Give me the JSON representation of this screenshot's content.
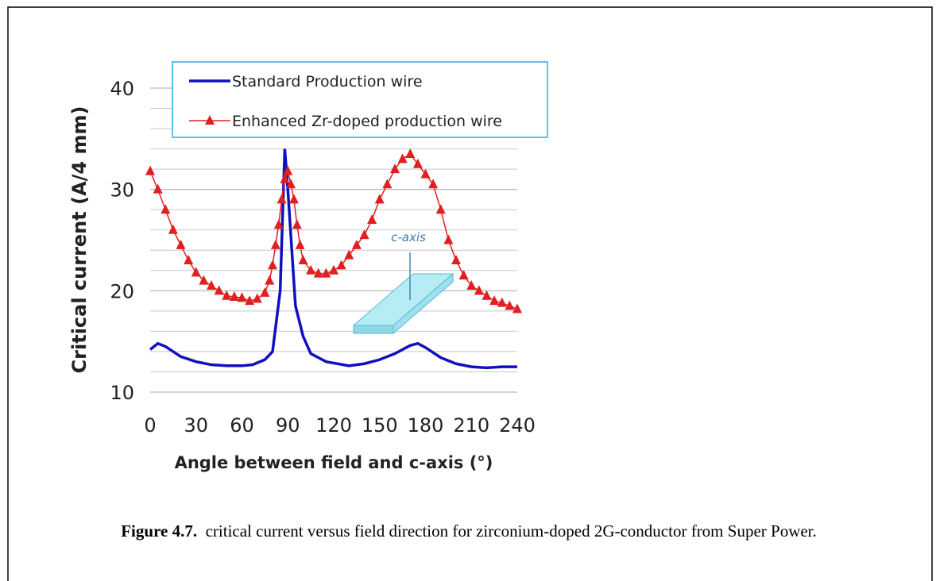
{
  "chart_data": {
    "type": "line",
    "x_label": "Angle between field and c-axis (°)",
    "y_label": "Critical current (A/4 mm)",
    "annotation": "c-axis",
    "xlim": [
      0,
      240
    ],
    "xticks": [
      0,
      30,
      60,
      90,
      120,
      150,
      180,
      210,
      240
    ],
    "ylim": [
      10,
      40
    ],
    "yticks": [
      10,
      20,
      30,
      40
    ],
    "minor_yticks": [
      12,
      14,
      16,
      18,
      22,
      24,
      26,
      28,
      32,
      34,
      36,
      38
    ],
    "grid": true,
    "series": [
      {
        "name": "Standard Production wire",
        "color": "#1010c0",
        "marker": "none",
        "x": [
          0,
          5,
          10,
          15,
          20,
          30,
          40,
          50,
          60,
          67,
          75,
          80,
          85,
          88,
          90,
          95,
          100,
          105,
          115,
          130,
          140,
          150,
          160,
          170,
          175,
          180,
          190,
          200,
          210,
          220,
          230,
          240
        ],
        "values": [
          14.2,
          14.8,
          14.5,
          14.0,
          13.5,
          13.0,
          12.7,
          12.6,
          12.6,
          12.7,
          13.2,
          14.0,
          20,
          34,
          30,
          18.5,
          15.5,
          13.8,
          13.0,
          12.6,
          12.8,
          13.2,
          13.8,
          14.6,
          14.8,
          14.4,
          13.4,
          12.8,
          12.5,
          12.4,
          12.5,
          12.5
        ]
      },
      {
        "name": "Enhanced Zr-doped production wire",
        "color": "#e02020",
        "marker": "triangle",
        "x": [
          0,
          5,
          10,
          15,
          20,
          25,
          30,
          35,
          40,
          45,
          50,
          55,
          60,
          65,
          70,
          75,
          78,
          80,
          82,
          84,
          86,
          88,
          90,
          92,
          94,
          96,
          98,
          100,
          105,
          110,
          115,
          120,
          125,
          130,
          135,
          140,
          145,
          150,
          155,
          160,
          165,
          170,
          175,
          180,
          185,
          190,
          195,
          200,
          205,
          210,
          215,
          220,
          225,
          230,
          235,
          240
        ],
        "values": [
          31.8,
          30,
          28,
          26,
          24.5,
          23,
          21.8,
          21,
          20.5,
          20,
          19.5,
          19.4,
          19.3,
          19.0,
          19.2,
          19.8,
          21,
          22.5,
          24.5,
          26.5,
          29,
          31,
          31.8,
          30.5,
          29,
          26.5,
          24.5,
          23,
          22,
          21.7,
          21.7,
          22,
          22.5,
          23.5,
          24.5,
          25.5,
          27,
          29,
          30.5,
          32,
          33,
          33.5,
          32.5,
          31.5,
          30.5,
          28,
          25,
          23,
          21.5,
          20.5,
          20,
          19.5,
          19,
          18.8,
          18.5,
          18.2
        ]
      }
    ]
  },
  "caption": {
    "label": "Figure 4.7.",
    "text": "critical current versus field direction for zirconium-doped 2G-conductor from Super Power."
  }
}
